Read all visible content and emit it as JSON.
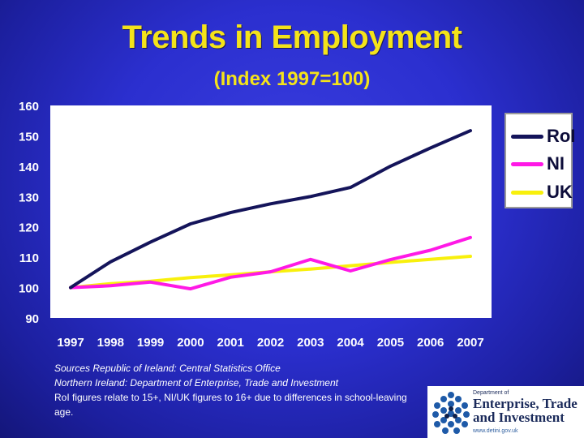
{
  "title": "Trends in Employment",
  "subtitle": "(Index 1997=100)",
  "chart_data": {
    "type": "line",
    "categories": [
      "1997",
      "1998",
      "1999",
      "2000",
      "2001",
      "2002",
      "2003",
      "2004",
      "2005",
      "2006",
      "2007"
    ],
    "ylim": [
      90,
      160
    ],
    "yticks": [
      90,
      100,
      110,
      120,
      130,
      140,
      150,
      160
    ],
    "grid": false,
    "legend_position": "right",
    "series": [
      {
        "name": "RoI",
        "color": "#14145a",
        "values": [
          100,
          108.5,
          115,
          121,
          124.7,
          127.6,
          130,
          133,
          140,
          146,
          151.7
        ]
      },
      {
        "name": "NI",
        "color": "#ff19e6",
        "values": [
          100,
          100.6,
          101.8,
          99.6,
          103.4,
          105.2,
          109.3,
          105.5,
          109.2,
          112.3,
          116.5
        ]
      },
      {
        "name": "UK",
        "color": "#f8f00c",
        "values": [
          100,
          101.3,
          102.1,
          103.3,
          104.2,
          105.2,
          106.1,
          107.2,
          108.3,
          109.3,
          110.3
        ]
      }
    ]
  },
  "sources": {
    "line1": "Sources  Republic of Ireland:  Central Statistics Office",
    "line2": "Northern Ireland:  Department of Enterprise, Trade and Investment",
    "line3": "RoI figures relate to 15+, NI/UK figures to 16+ due to differences in school-leaving age."
  },
  "logo": {
    "dept": "Department of",
    "name_line1": "Enterprise, Trade",
    "name_line2": "and Investment",
    "url": "www.detini.gov.uk"
  }
}
